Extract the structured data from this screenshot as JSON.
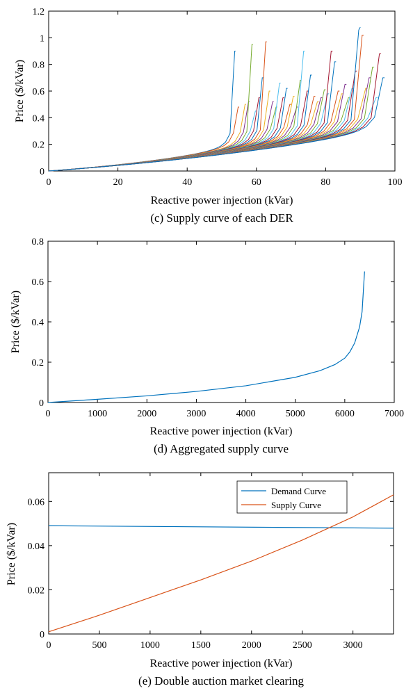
{
  "chart_data": [
    {
      "type": "line",
      "caption": "(c) Supply curve of each DER",
      "xlabel": "Reactive power injection (kVar)",
      "ylabel": "Price ($/kVar)",
      "xlim": [
        0,
        100
      ],
      "ylim": [
        0,
        1.2
      ],
      "xticks": [
        0,
        20,
        40,
        60,
        80,
        100
      ],
      "yticks": [
        0,
        0.2,
        0.4,
        0.6,
        0.8,
        1,
        1.2
      ],
      "ytick_labels": [
        "0",
        "0.2",
        "0.4",
        "0.6",
        "0.8",
        "1",
        "1.2"
      ],
      "series_family": {
        "description_of_curves": "many DER supply curves rising convexly and spiking near their capacity",
        "capacities_kvar": [
          54,
          55,
          57,
          58,
          59,
          60,
          61,
          62,
          63,
          64,
          65,
          66,
          67,
          68,
          69,
          70,
          71,
          72,
          73,
          74,
          75,
          76,
          77,
          78,
          79,
          80,
          81,
          82,
          83,
          84,
          85,
          86,
          87,
          88,
          89,
          90,
          91,
          92,
          93,
          94,
          95,
          96,
          97
        ],
        "peak_prices": [
          0.9,
          0.48,
          0.5,
          0.52,
          0.95,
          0.45,
          0.55,
          0.7,
          0.97,
          0.6,
          0.52,
          0.48,
          0.66,
          0.55,
          0.62,
          0.5,
          0.56,
          0.48,
          0.68,
          0.9,
          0.6,
          0.72,
          0.56,
          0.52,
          0.55,
          0.61,
          0.58,
          0.9,
          0.82,
          0.6,
          0.58,
          0.65,
          0.55,
          0.62,
          0.75,
          1.08,
          1.02,
          0.62,
          0.7,
          0.78,
          0.55,
          0.88,
          0.7
        ],
        "colors": [
          "#0072BD",
          "#D95319",
          "#EDB120",
          "#7E2F8E",
          "#77AC30",
          "#4DBEEE",
          "#A2142F"
        ]
      }
    },
    {
      "type": "line",
      "caption": "(d) Aggregated supply curve",
      "xlabel": "Reactive power injection (kVar)",
      "ylabel": "Price ($/kVar)",
      "xlim": [
        0,
        7000
      ],
      "ylim": [
        0,
        0.8
      ],
      "xticks": [
        0,
        1000,
        2000,
        3000,
        4000,
        5000,
        6000,
        7000
      ],
      "yticks": [
        0,
        0.2,
        0.4,
        0.6,
        0.8
      ],
      "ytick_labels": [
        "0",
        "0.2",
        "0.4",
        "0.6",
        "0.8"
      ],
      "series": [
        {
          "color": "#0072BD",
          "x": [
            0,
            1000,
            2000,
            3000,
            4000,
            5000,
            5500,
            5800,
            6000,
            6100,
            6200,
            6300,
            6350,
            6400
          ],
          "y": [
            0,
            0.016,
            0.033,
            0.055,
            0.083,
            0.125,
            0.158,
            0.188,
            0.22,
            0.25,
            0.295,
            0.375,
            0.45,
            0.65
          ]
        }
      ]
    },
    {
      "type": "line",
      "caption": "(e) Double auction market clearing",
      "xlabel": "Reactive power injection (kVar)",
      "ylabel": "Price ($/kVar)",
      "xlim": [
        0,
        3400
      ],
      "ylim": [
        0,
        0.073
      ],
      "xticks": [
        0,
        500,
        1000,
        1500,
        2000,
        2500,
        3000
      ],
      "yticks": [
        0,
        0.02,
        0.04,
        0.06
      ],
      "ytick_labels": [
        "0",
        "0.02",
        "0.04",
        "0.06"
      ],
      "legend_position": "top-right",
      "series": [
        {
          "name": "Demand Curve",
          "color": "#0072BD",
          "x": [
            0,
            3400
          ],
          "y": [
            0.049,
            0.0479
          ]
        },
        {
          "name": "Supply Curve",
          "color": "#D95319",
          "x": [
            0,
            500,
            1000,
            1500,
            2000,
            2500,
            2800,
            3000,
            3200,
            3400
          ],
          "y": [
            0.001,
            0.0085,
            0.0165,
            0.0245,
            0.033,
            0.0425,
            0.0488,
            0.053,
            0.058,
            0.063
          ]
        }
      ]
    }
  ]
}
